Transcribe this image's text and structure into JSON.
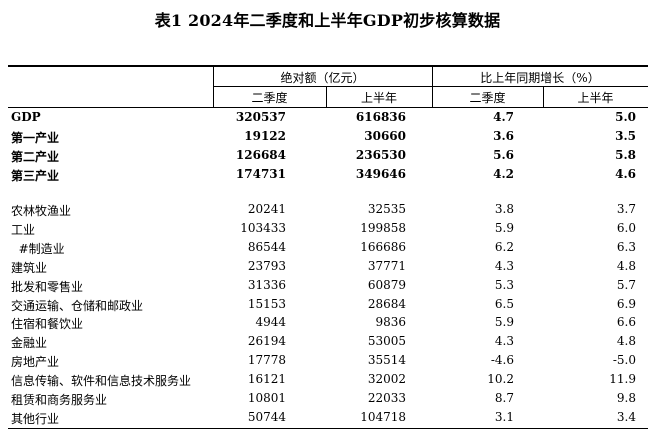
{
  "title": "表1    2024年二季度和上半年GDP初步核算数据",
  "header": {
    "group_abs": "绝对额（亿元）",
    "group_growth": "比上年同期增长（%）",
    "q2": "二季度",
    "h1": "上半年",
    "q2_growth": "二季度",
    "h1_growth": "上半年"
  },
  "rows_bold": [
    {
      "name": "GDP",
      "q2": "320537",
      "h1": "616836",
      "g_q2": "4.7",
      "g_h1": "5.0"
    },
    {
      "name": "第一产业",
      "q2": "19122",
      "h1": "30660",
      "g_q2": "3.6",
      "g_h1": "3.5"
    },
    {
      "name": "第二产业",
      "q2": "126684",
      "h1": "236530",
      "g_q2": "5.6",
      "g_h1": "5.8"
    },
    {
      "name": "第三产业",
      "q2": "174731",
      "h1": "349646",
      "g_q2": "4.2",
      "g_h1": "4.6"
    }
  ],
  "rows": [
    {
      "name": "农林牧渔业",
      "q2": "20241",
      "h1": "32535",
      "g_q2": "3.8",
      "g_h1": "3.7"
    },
    {
      "name": "工业",
      "q2": "103433",
      "h1": "199858",
      "g_q2": "5.9",
      "g_h1": "6.0"
    },
    {
      "name": "  #制造业",
      "q2": "86544",
      "h1": "166686",
      "g_q2": "6.2",
      "g_h1": "6.3"
    },
    {
      "name": "建筑业",
      "q2": "23793",
      "h1": "37771",
      "g_q2": "4.3",
      "g_h1": "4.8"
    },
    {
      "name": "批发和零售业",
      "q2": "31336",
      "h1": "60879",
      "g_q2": "5.3",
      "g_h1": "5.7"
    },
    {
      "name": "交通运输、仓储和邮政业",
      "q2": "15153",
      "h1": "28684",
      "g_q2": "6.5",
      "g_h1": "6.9"
    },
    {
      "name": "住宿和餐饮业",
      "q2": "4944",
      "h1": "9836",
      "g_q2": "5.9",
      "g_h1": "6.6"
    },
    {
      "name": "金融业",
      "q2": "26194",
      "h1": "53005",
      "g_q2": "4.3",
      "g_h1": "4.8"
    },
    {
      "name": "房地产业",
      "q2": "17778",
      "h1": "35514",
      "g_q2": "-4.6",
      "g_h1": "-5.0"
    },
    {
      "name": "信息传输、软件和信息技术服务业",
      "q2": "16121",
      "h1": "32002",
      "g_q2": "10.2",
      "g_h1": "11.9"
    },
    {
      "name": "租赁和商务服务业",
      "q2": "10801",
      "h1": "22033",
      "g_q2": "8.7",
      "g_h1": "9.8"
    },
    {
      "name": "其他行业",
      "q2": "50744",
      "h1": "104718",
      "g_q2": "3.1",
      "g_h1": "3.4"
    }
  ]
}
